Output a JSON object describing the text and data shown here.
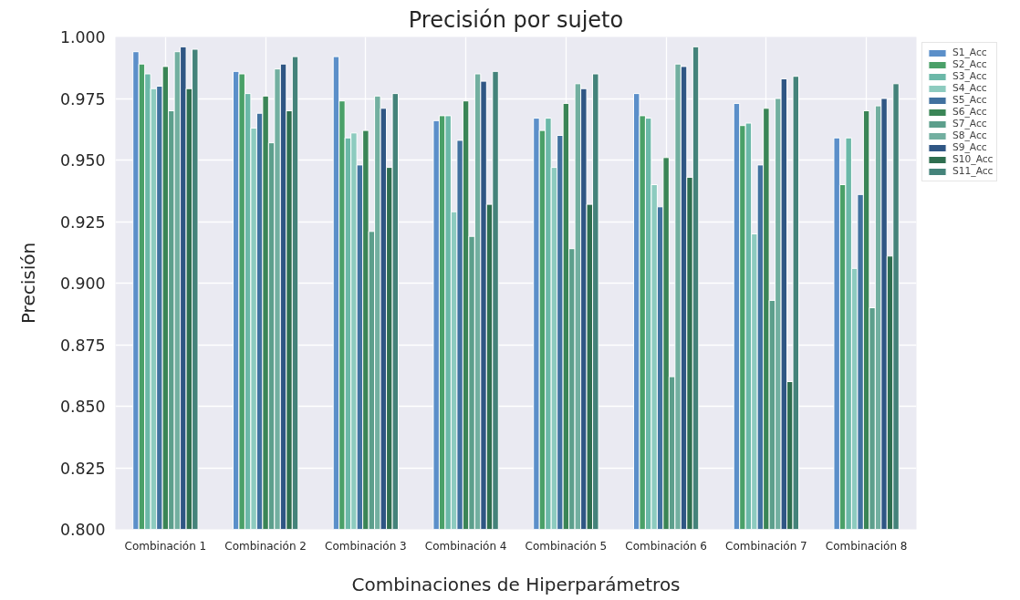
{
  "chart_data": {
    "type": "bar",
    "title": "Precisión por sujeto",
    "xlabel": "Combinaciones de Hiperparámetros",
    "ylabel": "Precisión",
    "categories": [
      "Combinación 1",
      "Combinación 2",
      "Combinación 3",
      "Combinación 4",
      "Combinación 5",
      "Combinación 6",
      "Combinación 7",
      "Combinación 8"
    ],
    "ylim": [
      0.8,
      1.0
    ],
    "yticks": [
      {
        "value": 0.8,
        "label": "0.800"
      },
      {
        "value": 0.825,
        "label": "0.825"
      },
      {
        "value": 0.85,
        "label": "0.850"
      },
      {
        "value": 0.875,
        "label": "0.875"
      },
      {
        "value": 0.9,
        "label": "0.900"
      },
      {
        "value": 0.925,
        "label": "0.925"
      },
      {
        "value": 0.95,
        "label": "0.950"
      },
      {
        "value": 0.975,
        "label": "0.975"
      },
      {
        "value": 1.0,
        "label": "1.000"
      }
    ],
    "grid": true,
    "legend": "top right",
    "series": [
      {
        "name": "S1_Acc",
        "color": "#5b8fc9",
        "values": [
          0.994,
          0.986,
          0.992,
          0.966,
          0.967,
          0.977,
          0.973,
          0.959
        ]
      },
      {
        "name": "S2_Acc",
        "color": "#4aa068",
        "values": [
          0.989,
          0.985,
          0.974,
          0.968,
          0.962,
          0.968,
          0.964,
          0.94
        ]
      },
      {
        "name": "S3_Acc",
        "color": "#6bb8a8",
        "values": [
          0.985,
          0.977,
          0.959,
          0.968,
          0.967,
          0.967,
          0.965,
          0.959
        ]
      },
      {
        "name": "S4_Acc",
        "color": "#8dcbbf",
        "values": [
          0.979,
          0.963,
          0.961,
          0.929,
          0.947,
          0.94,
          0.92,
          0.906
        ]
      },
      {
        "name": "S5_Acc",
        "color": "#41719f",
        "values": [
          0.98,
          0.969,
          0.948,
          0.958,
          0.96,
          0.931,
          0.948,
          0.936
        ]
      },
      {
        "name": "S6_Acc",
        "color": "#3a8556",
        "values": [
          0.988,
          0.976,
          0.962,
          0.974,
          0.973,
          0.951,
          0.971,
          0.97
        ]
      },
      {
        "name": "S7_Acc",
        "color": "#5c9f8c",
        "values": [
          0.97,
          0.957,
          0.921,
          0.919,
          0.914,
          0.862,
          0.893,
          0.89
        ]
      },
      {
        "name": "S8_Acc",
        "color": "#72afa0",
        "values": [
          0.994,
          0.987,
          0.976,
          0.985,
          0.981,
          0.989,
          0.975,
          0.972
        ]
      },
      {
        "name": "S9_Acc",
        "color": "#2f5684",
        "values": [
          0.996,
          0.989,
          0.971,
          0.982,
          0.979,
          0.988,
          0.983,
          0.975
        ]
      },
      {
        "name": "S10_Acc",
        "color": "#2e6e4f",
        "values": [
          0.979,
          0.97,
          0.947,
          0.932,
          0.932,
          0.943,
          0.86,
          0.911
        ]
      },
      {
        "name": "S11_Acc",
        "color": "#44837a",
        "values": [
          0.995,
          0.992,
          0.977,
          0.986,
          0.985,
          0.996,
          0.984,
          0.981
        ]
      }
    ]
  }
}
